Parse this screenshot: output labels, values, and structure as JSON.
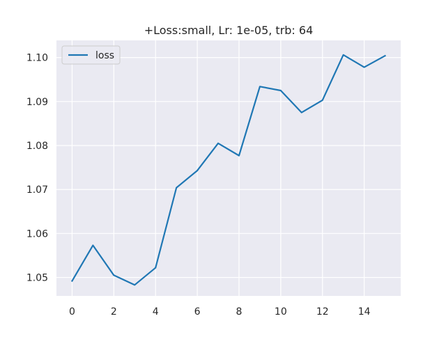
{
  "chart_data": {
    "type": "line",
    "title": "+Loss:small, Lr: 1e-05, trb: 64",
    "xlabel": "",
    "ylabel": "",
    "x": [
      0,
      1,
      2,
      3,
      4,
      5,
      6,
      7,
      8,
      9,
      10,
      11,
      12,
      13,
      14,
      15
    ],
    "series": [
      {
        "name": "loss",
        "values": [
          1.0492,
          1.0573,
          1.0505,
          1.0483,
          1.0522,
          1.0704,
          1.0743,
          1.0805,
          1.0777,
          1.0934,
          1.0925,
          1.0875,
          1.0903,
          1.1006,
          1.0978,
          1.1004
        ]
      }
    ],
    "xlim": [
      -0.75,
      15.75
    ],
    "ylim": [
      1.0458,
      1.1039
    ],
    "xticks": [
      0,
      2,
      4,
      6,
      8,
      10,
      12,
      14
    ],
    "xtick_labels": [
      "0",
      "2",
      "4",
      "6",
      "8",
      "10",
      "12",
      "14"
    ],
    "yticks": [
      1.05,
      1.06,
      1.07,
      1.08,
      1.09,
      1.1
    ],
    "ytick_labels": [
      "1.05",
      "1.06",
      "1.07",
      "1.08",
      "1.09",
      "1.10"
    ],
    "grid": true,
    "legend_position": "top-left",
    "colors": {
      "background": "#eaeaf2",
      "grid": "#ffffff",
      "line": "#1f77b4"
    }
  }
}
